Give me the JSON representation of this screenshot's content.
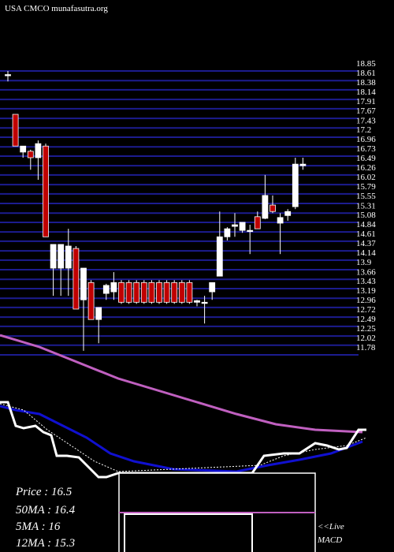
{
  "chart_data": [
    {
      "type": "candlestick",
      "title": "USA CMCO munafasutra.org",
      "ylim": [
        11.78,
        18.85
      ],
      "yticks": [
        18.85,
        18.61,
        18.38,
        18.14,
        17.91,
        17.67,
        17.43,
        17.2,
        16.96,
        16.73,
        16.49,
        16.26,
        16.02,
        15.79,
        15.55,
        15.31,
        15.08,
        14.84,
        14.61,
        14.37,
        14.14,
        13.9,
        13.66,
        13.43,
        13.19,
        12.96,
        12.72,
        12.49,
        12.25,
        12.02,
        11.78
      ],
      "grid": true,
      "grid_color": "#1c1c8f",
      "up_color": "#ffffff",
      "down_color": "#c00000",
      "open": [
        18.75,
        17.77,
        16.83,
        16.85,
        16.69,
        16.98,
        13.94,
        13.94,
        13.94,
        14.43,
        13.15,
        13.58,
        12.66,
        13.31,
        13.35,
        13.58,
        13.58,
        13.58,
        13.58,
        13.58,
        13.58,
        13.58,
        13.58,
        13.58,
        13.58,
        13.09,
        13.07,
        13.35,
        13.74,
        14.72,
        14.98,
        14.88,
        14.86,
        15.22,
        15.18,
        15.51,
        15.06,
        15.25,
        15.47,
        16.49
      ],
      "high": [
        18.85,
        17.77,
        16.98,
        16.89,
        17.12,
        17.04,
        14.53,
        14.53,
        14.92,
        14.49,
        13.94,
        13.64,
        12.96,
        13.55,
        13.84,
        13.64,
        13.64,
        13.64,
        13.64,
        13.64,
        13.64,
        13.64,
        13.64,
        13.64,
        13.64,
        13.15,
        13.25,
        13.58,
        15.35,
        14.96,
        15.31,
        15.08,
        15.02,
        15.35,
        16.26,
        15.75,
        15.31,
        15.41,
        16.69,
        16.69
      ],
      "low": [
        18.59,
        16.98,
        16.69,
        16.39,
        16.14,
        14.72,
        13.25,
        13.25,
        13.25,
        12.92,
        11.88,
        12.66,
        12.07,
        13.15,
        13.15,
        13.05,
        13.05,
        13.05,
        13.05,
        13.05,
        13.05,
        13.05,
        13.05,
        13.05,
        13.05,
        12.99,
        12.56,
        13.15,
        13.74,
        14.63,
        14.72,
        14.82,
        14.29,
        14.92,
        15.16,
        15.31,
        14.29,
        15.12,
        15.41,
        16.39
      ],
      "close": [
        18.76,
        16.98,
        16.98,
        16.69,
        17.04,
        14.72,
        14.53,
        14.53,
        14.49,
        12.92,
        13.94,
        12.66,
        12.96,
        13.51,
        13.58,
        13.09,
        13.09,
        13.09,
        13.09,
        13.09,
        13.09,
        13.09,
        13.09,
        13.09,
        13.09,
        13.13,
        13.09,
        13.58,
        14.72,
        14.92,
        15.02,
        15.08,
        14.88,
        14.92,
        15.75,
        15.35,
        15.2,
        15.35,
        16.53,
        16.53
      ]
    },
    {
      "type": "line",
      "xlim": [
        0,
        100
      ],
      "ylim": [
        -10,
        180
      ],
      "series": [
        {
          "color": "#c060c0",
          "dash": false,
          "x": [
            0,
            10,
            20,
            30,
            40,
            50,
            60,
            70,
            80,
            92
          ],
          "values": [
            175,
            160,
            140,
            120,
            105,
            90,
            75,
            62,
            55,
            52
          ]
        },
        {
          "color": "#1010d0",
          "dash": false,
          "x": [
            0,
            4,
            10,
            16,
            22,
            28,
            34,
            44,
            60,
            68,
            76,
            84,
            92
          ],
          "values": [
            85,
            80,
            75,
            60,
            45,
            25,
            15,
            5,
            2,
            10,
            17,
            25,
            40
          ]
        },
        {
          "color": "#ffffff",
          "dash": true,
          "x": [
            0,
            6,
            12,
            18,
            24,
            30,
            66,
            72,
            80,
            88,
            93
          ],
          "values": [
            88,
            80,
            55,
            35,
            15,
            2,
            10,
            22,
            30,
            35,
            45
          ]
        },
        {
          "color": "#ffffff",
          "dash": false,
          "x": [
            0,
            2,
            4,
            6,
            9,
            11,
            13,
            14.4,
            17,
            20,
            23,
            25,
            27,
            30,
            64,
            67,
            72,
            76,
            80,
            83,
            86,
            88,
            91,
            93
          ],
          "values": [
            90,
            90,
            60,
            57,
            60,
            52,
            48,
            22,
            22,
            20,
            5,
            -5,
            -5,
            0,
            0,
            22,
            25,
            25,
            38,
            35,
            30,
            32,
            55,
            55
          ]
        }
      ],
      "annotations": [
        "Price  : 16.5",
        "50MA : 16.4",
        "5MA : 16",
        "12MA : 15.3",
        "<<Live",
        "MACD"
      ]
    }
  ]
}
